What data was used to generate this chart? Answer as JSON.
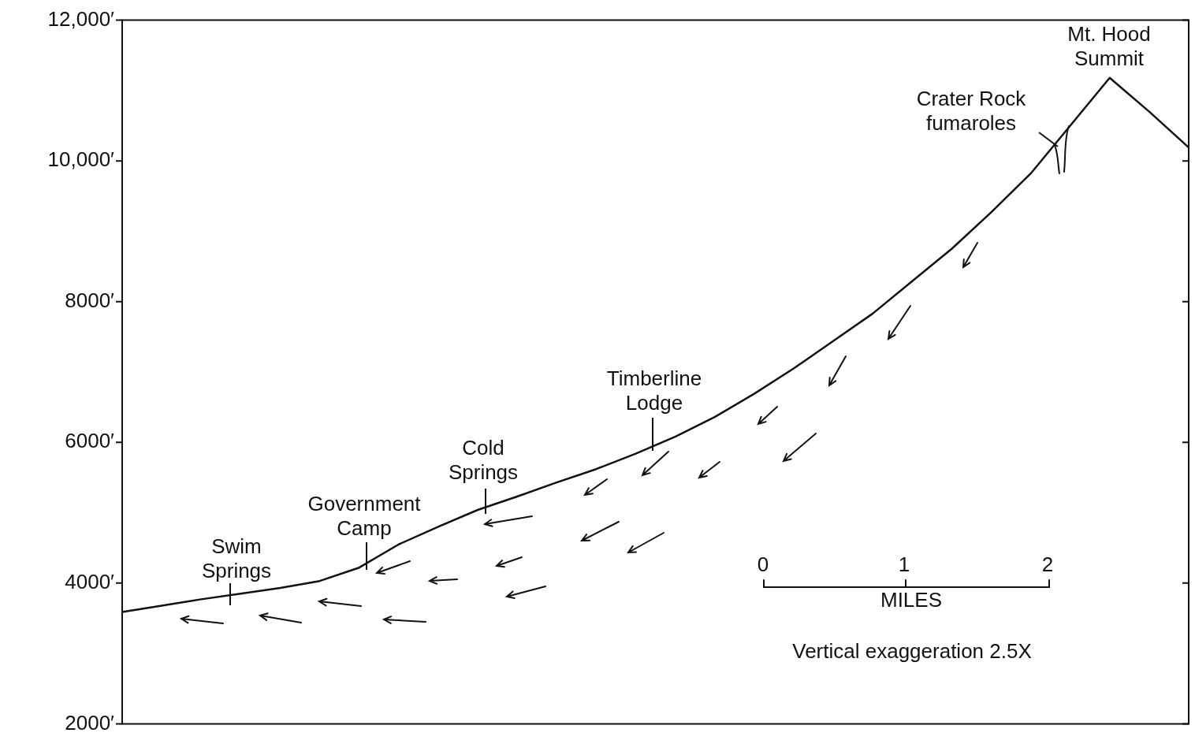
{
  "chart_data": {
    "type": "line",
    "categories": [
      null,
      null,
      null,
      null,
      null,
      null,
      null,
      null,
      null,
      null,
      null,
      null,
      null,
      null,
      null,
      null,
      null,
      null,
      null,
      null,
      null,
      null,
      null,
      null,
      null,
      null,
      null,
      null
    ],
    "series": [
      {
        "color": "#111111",
        "values": [
          3590,
          3680,
          3770,
          3850,
          3930,
          4030,
          4220,
          4550,
          4800,
          5040,
          5230,
          5430,
          5620,
          5840,
          6080,
          6360,
          6690,
          7050,
          7440,
          7830,
          8290,
          8750,
          9270,
          9820,
          10500,
          11180,
          10700,
          10190
        ]
      }
    ],
    "ylim": [
      2000,
      12000
    ],
    "yticks": [
      {
        "value": 2000,
        "label": "2000′"
      },
      {
        "value": 4000,
        "label": "4000′"
      },
      {
        "value": 6000,
        "label": "6000′"
      },
      {
        "value": 8000,
        "label": "8000′"
      },
      {
        "value": 10000,
        "label": "10,000′"
      },
      {
        "value": 12000,
        "label": "12,000′"
      }
    ],
    "annotations": [
      "Mt. Hood\nSummit",
      "Crater Rock\nfumaroles",
      "Timberline\nLodge",
      "Cold\nSprings",
      "Government\nCamp",
      "Swim\nSprings",
      "Vertical exaggeration 2.5X",
      "0",
      "1",
      "2",
      "MILES"
    ],
    "grid": false,
    "legend": false,
    "marker": "none",
    "line_style": "solid",
    "tick_labels": "y"
  }
}
